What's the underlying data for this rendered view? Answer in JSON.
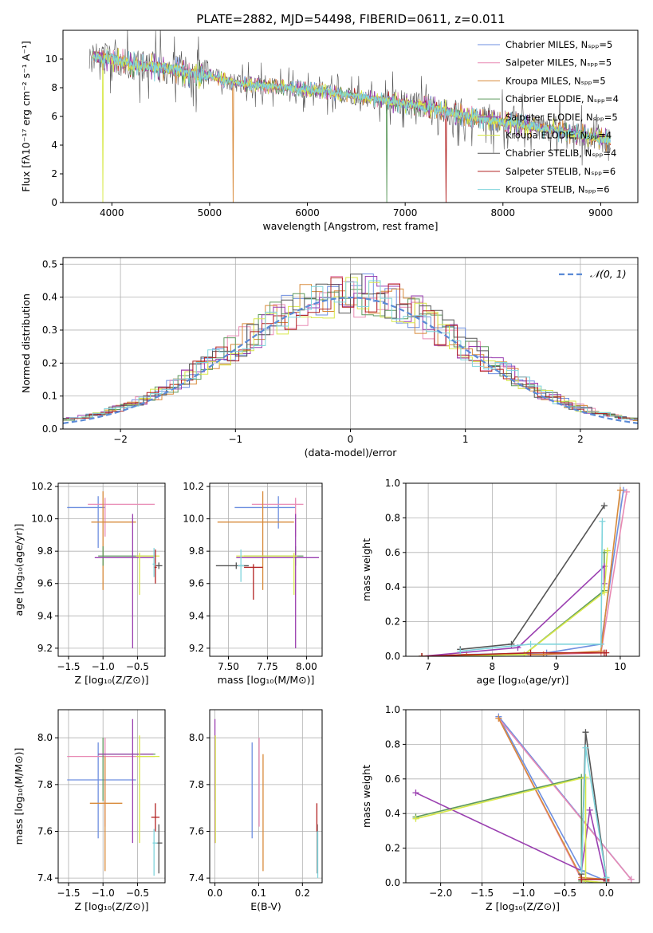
{
  "figure": {
    "title": "PLATE=2882, MJD=54498, FIBERID=0611, z=0.011",
    "colors": [
      "#6e8fe0",
      "#e88ab4",
      "#d88a3a",
      "#5e9a5e",
      "#9a3fb0",
      "#d8e84a",
      "#555555",
      "#b22222",
      "#7fd4dc"
    ]
  },
  "chart_data": [
    {
      "id": "spectrum",
      "type": "line",
      "title": "PLATE=2882, MJD=54498, FIBERID=0611, z=0.011",
      "xlabel": "wavelength [Angstrom, rest frame]",
      "ylabel": "Flux [fλ10⁻¹⁷ erg cm⁻² s⁻¹ A⁻¹]",
      "xlim": [
        3500,
        9380
      ],
      "ylim": [
        0,
        12
      ],
      "xticks": [
        "4000",
        "5000",
        "6000",
        "7000",
        "8000",
        "9000"
      ],
      "yticks": [
        "0",
        "2",
        "4",
        "6",
        "8",
        "10"
      ],
      "grid": false,
      "legend_position": "top-right",
      "legend": [
        "Chabrier MILES, Nₛₚₚ=5",
        "Salpeter MILES, Nₛₚₚ=5",
        "Kroupa MILES, Nₛₚₚ=5",
        "Chabrier ELODIE, Nₛₚₚ=4",
        "Salpeter ELODIE, Nₛₚₚ=5",
        "Kroupa ELODIE, Nₛₚₚ=4",
        "Chabrier STELIB, Nₛₚₚ=4",
        "Salpeter STELIB, Nₛₚₚ=6",
        "Kroupa STELIB, Nₛₚₚ=6"
      ],
      "data_trend": {
        "wavelength": [
          3800,
          4000,
          4200,
          4500,
          4800,
          5000,
          5300,
          5600,
          6000,
          6300,
          6600,
          6800,
          7000,
          7300,
          7500,
          7700,
          8000,
          8300,
          8600,
          8900,
          9100
        ],
        "flux": [
          10.2,
          10.0,
          9.6,
          9.4,
          9.0,
          8.8,
          8.3,
          8.1,
          7.9,
          7.6,
          7.3,
          7.1,
          6.9,
          6.6,
          6.2,
          5.9,
          5.6,
          5.3,
          5.0,
          4.6,
          4.3
        ]
      }
    },
    {
      "id": "residuals",
      "type": "step",
      "xlabel": "(data-model)/error",
      "ylabel": "Normed distribution",
      "xlim": [
        -2.5,
        2.5
      ],
      "ylim": [
        0,
        0.52
      ],
      "xticks": [
        "−2",
        "−1",
        "0",
        "1",
        "2"
      ],
      "yticks": [
        "0.0",
        "0.1",
        "0.2",
        "0.3",
        "0.4",
        "0.5"
      ],
      "grid": true,
      "legend_position": "top-right",
      "legend": [
        "𝒩(0, 1)"
      ],
      "gaussian": {
        "mean": 0,
        "sigma": 1
      }
    },
    {
      "id": "age_vs_Z",
      "type": "errorbar",
      "xlabel": "Z [log₁₀(Z/Z⊙)]",
      "ylabel": "age  [log₁₀(age/yr)]",
      "xlim": [
        -1.65,
        -0.1
      ],
      "ylim": [
        9.15,
        10.22
      ],
      "xticks": [
        "−1.5",
        "−1.0",
        "−0.5"
      ],
      "yticks": [
        "9.2",
        "9.4",
        "9.6",
        "9.8",
        "10.0",
        "10.2"
      ],
      "grid": true,
      "points": [
        {
          "x": -1.07,
          "y": 10.07,
          "xerr": [
            0.45,
            0.1
          ],
          "yerr": [
            0.25,
            0.07
          ]
        },
        {
          "x": -0.97,
          "y": 10.09,
          "xerr": [
            0.25,
            0.72
          ],
          "yerr": [
            0.2,
            0.04
          ]
        },
        {
          "x": -1.0,
          "y": 9.98,
          "xerr": [
            0.17,
            0.48
          ],
          "yerr": [
            0.42,
            0.19
          ]
        },
        {
          "x": -1.0,
          "y": 9.77,
          "xerr": [
            0.07,
            0.76
          ],
          "yerr": [
            0.06,
            0.06
          ]
        },
        {
          "x": -0.57,
          "y": 9.76,
          "xerr": [
            0.55,
            0.31
          ],
          "yerr": [
            0.56,
            0.27
          ]
        },
        {
          "x": -0.47,
          "y": 9.77,
          "xerr": [
            0.05,
            0.29
          ],
          "yerr": [
            0.24,
            0.02
          ]
        },
        {
          "x": -0.19,
          "y": 9.71,
          "xerr": [
            0.04,
            0.05
          ],
          "yerr": [
            0.02,
            0.02
          ]
        },
        {
          "x": -0.24,
          "y": 9.7,
          "xerr": [
            0.02,
            0.02
          ],
          "yerr": [
            0.1,
            0.11
          ]
        },
        {
          "x": -0.26,
          "y": 9.72,
          "xerr": [
            0.02,
            0.02
          ],
          "yerr": [
            0.08,
            0.1
          ]
        }
      ]
    },
    {
      "id": "age_vs_mass",
      "type": "errorbar",
      "xlabel": "mass [log₁₀(M/M⊙)]",
      "ylabel": "",
      "xlim": [
        7.38,
        8.1
      ],
      "ylim": [
        9.15,
        10.22
      ],
      "xticks": [
        "7.50",
        "7.75",
        "8.00"
      ],
      "yticks": [
        "9.2",
        "9.4",
        "9.6",
        "9.8",
        "10.0",
        "10.2"
      ],
      "grid": true,
      "points": [
        {
          "x": 7.82,
          "y": 10.07,
          "xerr": [
            0.28,
            0.11
          ],
          "yerr": [
            0.13,
            0.07
          ]
        },
        {
          "x": 7.93,
          "y": 10.09,
          "xerr": [
            0.28,
            0.05
          ],
          "yerr": [
            0.2,
            0.04
          ]
        },
        {
          "x": 7.72,
          "y": 9.98,
          "xerr": [
            0.29,
            0.2
          ],
          "yerr": [
            0.42,
            0.19
          ]
        },
        {
          "x": 7.93,
          "y": 9.77,
          "xerr": [
            0.33,
            0.05
          ],
          "yerr": [
            0.06,
            0.06
          ]
        },
        {
          "x": 7.93,
          "y": 9.76,
          "xerr": [
            0.38,
            0.15
          ],
          "yerr": [
            0.56,
            0.27
          ]
        },
        {
          "x": 7.92,
          "y": 9.77,
          "xerr": [
            0.37,
            0.02
          ],
          "yerr": [
            0.24,
            0.02
          ]
        },
        {
          "x": 7.55,
          "y": 9.71,
          "xerr": [
            0.13,
            0.08
          ],
          "yerr": [
            0.02,
            0.02
          ]
        },
        {
          "x": 7.66,
          "y": 9.7,
          "xerr": [
            0.06,
            0.06
          ],
          "yerr": [
            0.2,
            0.02
          ]
        },
        {
          "x": 7.58,
          "y": 9.71,
          "xerr": [
            0.02,
            0.02
          ],
          "yerr": [
            0.1,
            0.1
          ]
        }
      ]
    },
    {
      "id": "weight_vs_age",
      "type": "line",
      "xlabel": "age  [log₁₀(age/yr)]",
      "ylabel": "mass weight",
      "xlim": [
        6.65,
        10.3
      ],
      "ylim": [
        0,
        1
      ],
      "xticks": [
        "7",
        "8",
        "9",
        "10"
      ],
      "yticks": [
        "0.0",
        "0.2",
        "0.4",
        "0.6",
        "0.8",
        "1.0"
      ],
      "grid": true,
      "series": [
        {
          "x": [
            6.9,
            7.6,
            8.85,
            9.7,
            10.05
          ],
          "y": [
            0.0,
            0.01,
            0.02,
            0.07,
            0.96
          ]
        },
        {
          "x": [
            6.9,
            7.6,
            8.8,
            9.7,
            10.1
          ],
          "y": [
            0.0,
            0.01,
            0.01,
            0.02,
            0.95
          ]
        },
        {
          "x": [
            6.9,
            7.6,
            8.8,
            9.7,
            10.0
          ],
          "y": [
            0.0,
            0.01,
            0.01,
            0.03,
            0.96
          ]
        },
        {
          "x": [
            6.9,
            8.5,
            9.75,
            9.75
          ],
          "y": [
            0.0,
            0.01,
            0.38,
            0.6
          ]
        },
        {
          "x": [
            6.9,
            8.4,
            9.75,
            9.75
          ],
          "y": [
            0.0,
            0.05,
            0.52,
            0.42
          ]
        },
        {
          "x": [
            6.9,
            8.5,
            9.75,
            9.8
          ],
          "y": [
            0.0,
            0.01,
            0.37,
            0.61
          ]
        },
        {
          "x": [
            7.5,
            8.3,
            9.75
          ],
          "y": [
            0.04,
            0.07,
            0.87
          ]
        },
        {
          "x": [
            6.9,
            8.6,
            9.75,
            9.78
          ],
          "y": [
            0.0,
            0.02,
            0.02,
            0.02
          ]
        },
        {
          "x": [
            7.5,
            8.6,
            9.7,
            9.72
          ],
          "y": [
            0.03,
            0.07,
            0.07,
            0.78
          ]
        }
      ]
    },
    {
      "id": "mass_vs_Z",
      "type": "errorbar",
      "xlabel": "Z [log₁₀(Z/Z⊙)]",
      "ylabel": "mass [log₁₀(M/M⊙)]",
      "xlim": [
        -1.65,
        -0.1
      ],
      "ylim": [
        7.38,
        8.12
      ],
      "xticks": [
        "−1.5",
        "−1.0",
        "−0.5"
      ],
      "yticks": [
        "7.4",
        "7.6",
        "7.8",
        "8.0"
      ],
      "grid": true,
      "points": [
        {
          "x": -1.07,
          "y": 7.82,
          "xerr": [
            0.45,
            0.55
          ],
          "yerr": [
            0.25,
            0.16
          ]
        },
        {
          "x": -0.97,
          "y": 7.92,
          "xerr": [
            0.55,
            0.72
          ],
          "yerr": [
            0.3,
            0.08
          ]
        },
        {
          "x": -0.97,
          "y": 7.72,
          "xerr": [
            0.22,
            0.25
          ],
          "yerr": [
            0.29,
            0.2
          ]
        },
        {
          "x": -1.0,
          "y": 7.93,
          "xerr": [
            0.07,
            0.76
          ],
          "yerr": [
            0.2,
            0.07
          ]
        },
        {
          "x": -0.57,
          "y": 7.93,
          "xerr": [
            0.5,
            0.3
          ],
          "yerr": [
            0.38,
            0.15
          ]
        },
        {
          "x": -0.47,
          "y": 7.92,
          "xerr": [
            0.05,
            0.29
          ],
          "yerr": [
            0.37,
            0.09
          ]
        },
        {
          "x": -0.19,
          "y": 7.55,
          "xerr": [
            0.04,
            0.05
          ],
          "yerr": [
            0.13,
            0.08
          ]
        },
        {
          "x": -0.24,
          "y": 7.66,
          "xerr": [
            0.06,
            0.06
          ],
          "yerr": [
            0.06,
            0.06
          ]
        },
        {
          "x": -0.26,
          "y": 7.55,
          "xerr": [
            0.02,
            0.05
          ],
          "yerr": [
            0.14,
            0.06
          ]
        }
      ]
    },
    {
      "id": "mass_vs_EBV",
      "type": "errorbar",
      "xlabel": "E(B-V)",
      "ylabel": "",
      "xlim": [
        -0.012,
        0.245
      ],
      "ylim": [
        7.38,
        8.12
      ],
      "xticks": [
        "0.0",
        "0.1",
        "0.2"
      ],
      "yticks": [
        "7.4",
        "7.6",
        "7.8",
        "8.0"
      ],
      "grid": true,
      "points": [
        {
          "x": 0.085,
          "y": 7.82,
          "xerr": [
            0,
            0
          ],
          "yerr": [
            0.25,
            0.16
          ]
        },
        {
          "x": 0.101,
          "y": 7.92,
          "xerr": [
            0,
            0
          ],
          "yerr": [
            0.3,
            0.08
          ]
        },
        {
          "x": 0.11,
          "y": 7.72,
          "xerr": [
            0,
            0
          ],
          "yerr": [
            0.29,
            0.21
          ]
        },
        {
          "x": 0.0,
          "y": 7.93,
          "xerr": [
            0,
            0
          ],
          "yerr": [
            0.2,
            0.07
          ]
        },
        {
          "x": 0.0,
          "y": 7.93,
          "xerr": [
            0,
            0
          ],
          "yerr": [
            0.38,
            0.15
          ]
        },
        {
          "x": 0.001,
          "y": 7.92,
          "xerr": [
            0,
            0
          ],
          "yerr": [
            0.37,
            0.09
          ]
        },
        {
          "x": 0.234,
          "y": 7.55,
          "xerr": [
            0,
            0
          ],
          "yerr": [
            0.13,
            0.08
          ]
        },
        {
          "x": 0.233,
          "y": 7.66,
          "xerr": [
            0,
            0
          ],
          "yerr": [
            0.06,
            0.06
          ]
        },
        {
          "x": 0.235,
          "y": 7.5,
          "xerr": [
            0,
            0
          ],
          "yerr": [
            0.1,
            0.1
          ]
        }
      ]
    },
    {
      "id": "weight_vs_Z",
      "type": "line",
      "xlabel": "Z [log₁₀(Z/Z⊙)]",
      "ylabel": "mass weight",
      "xlim": [
        -2.42,
        0.4
      ],
      "ylim": [
        0,
        1
      ],
      "xticks": [
        "−2.0",
        "−1.5",
        "−1.0",
        "−0.5",
        "0.0"
      ],
      "yticks": [
        "0.0",
        "0.2",
        "0.4",
        "0.6",
        "0.8",
        "1.0"
      ],
      "grid": true,
      "series": [
        {
          "x": [
            0.3,
            -1.3,
            -0.3,
            0.0
          ],
          "y": [
            0.02,
            0.96,
            0.07,
            0.01
          ]
        },
        {
          "x": [
            0.3,
            -1.3,
            -0.3,
            0.0
          ],
          "y": [
            0.02,
            0.95,
            0.02,
            0.02
          ]
        },
        {
          "x": [
            -1.3,
            -0.3,
            0.0
          ],
          "y": [
            0.95,
            0.03,
            0.02
          ]
        },
        {
          "x": [
            -2.3,
            -0.3,
            -0.3,
            0.0
          ],
          "y": [
            0.38,
            0.61,
            0.01,
            0.0
          ]
        },
        {
          "x": [
            -2.3,
            -0.3,
            -0.2,
            0.0
          ],
          "y": [
            0.52,
            0.07,
            0.42,
            0.0
          ]
        },
        {
          "x": [
            -2.3,
            -0.25,
            -0.25,
            0.0
          ],
          "y": [
            0.37,
            0.61,
            0.01,
            0.0
          ]
        },
        {
          "x": [
            -0.3,
            -0.25,
            0.0,
            0.0
          ],
          "y": [
            0.05,
            0.87,
            0.03,
            0.0
          ]
        },
        {
          "x": [
            -0.3,
            0.0,
            0.0
          ],
          "y": [
            0.02,
            0.02,
            0.01
          ]
        },
        {
          "x": [
            -0.3,
            -0.25,
            0.0,
            0.0
          ],
          "y": [
            0.07,
            0.78,
            0.03,
            0.0
          ]
        }
      ]
    }
  ]
}
